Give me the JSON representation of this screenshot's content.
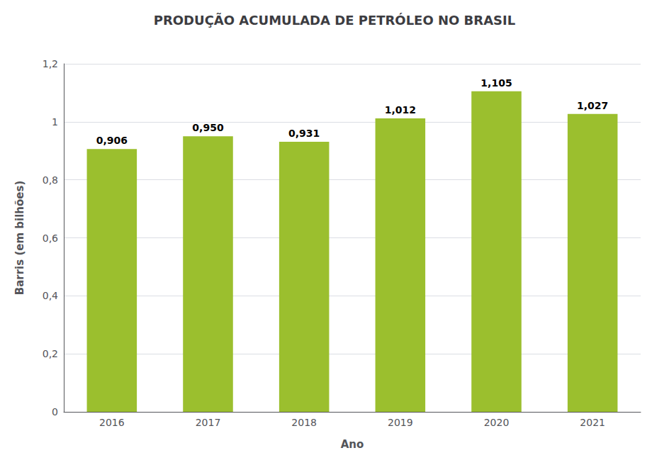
{
  "chart_data": {
    "type": "bar",
    "title": "PRODUÇÃO ACUMULADA DE PETRÓLEO NO BRASIL",
    "xlabel": "Ano",
    "ylabel": "Barris (em bilhões)",
    "categories": [
      "2016",
      "2017",
      "2018",
      "2019",
      "2020",
      "2021"
    ],
    "values": [
      0.906,
      0.95,
      0.931,
      1.012,
      1.105,
      1.027
    ],
    "value_labels": [
      "0,906",
      "0,950",
      "0,931",
      "1,012",
      "1,105",
      "1,027"
    ],
    "color": "#9BBF2E",
    "ylim": [
      0,
      1.2
    ],
    "yticks": [
      0,
      {
        "value": 0.2,
        "label": "0,2"
      },
      {
        "value": 0.4,
        "label": "0,4"
      },
      {
        "value": 0.6,
        "label": "0,6"
      },
      {
        "value": 0.8,
        "label": "0,8"
      },
      1,
      {
        "value": 1.2,
        "label": "1,2"
      }
    ],
    "grid": true,
    "data_labels": true
  }
}
